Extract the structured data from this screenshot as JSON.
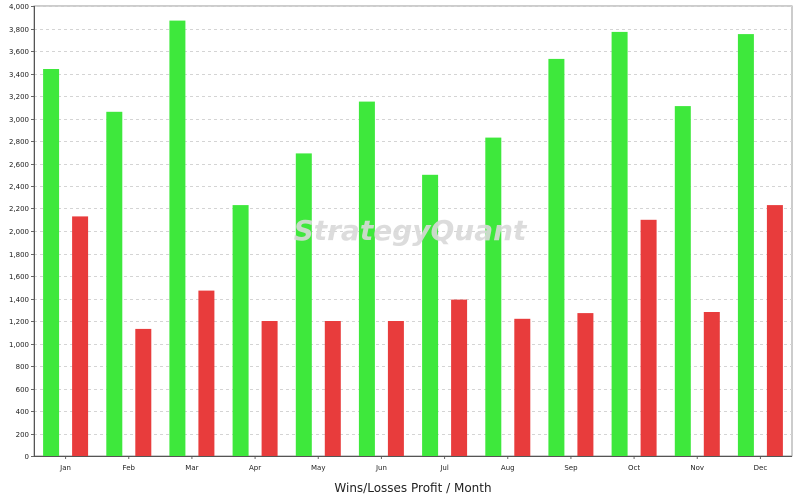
{
  "watermark": "StrategyQuant",
  "chart_data": {
    "type": "bar",
    "title": "",
    "xlabel": "Wins/Losses Profit / Month",
    "ylabel": "",
    "categories": [
      "Jan",
      "Feb",
      "Mar",
      "Apr",
      "May",
      "Jun",
      "Jul",
      "Aug",
      "Sep",
      "Oct",
      "Nov",
      "Dec"
    ],
    "ylim": [
      0,
      4000
    ],
    "ytick_step": 200,
    "grid": true,
    "legend": "none",
    "series": [
      {
        "color": "#3ee83c",
        "values": [
          3440,
          3060,
          3870,
          2230,
          2690,
          3150,
          2500,
          2830,
          3530,
          3770,
          3110,
          3750
        ]
      },
      {
        "color": "#e83c3c",
        "values": [
          2130,
          1130,
          1470,
          1200,
          1200,
          1200,
          1390,
          1220,
          1270,
          2100,
          1280,
          2230
        ]
      }
    ]
  }
}
